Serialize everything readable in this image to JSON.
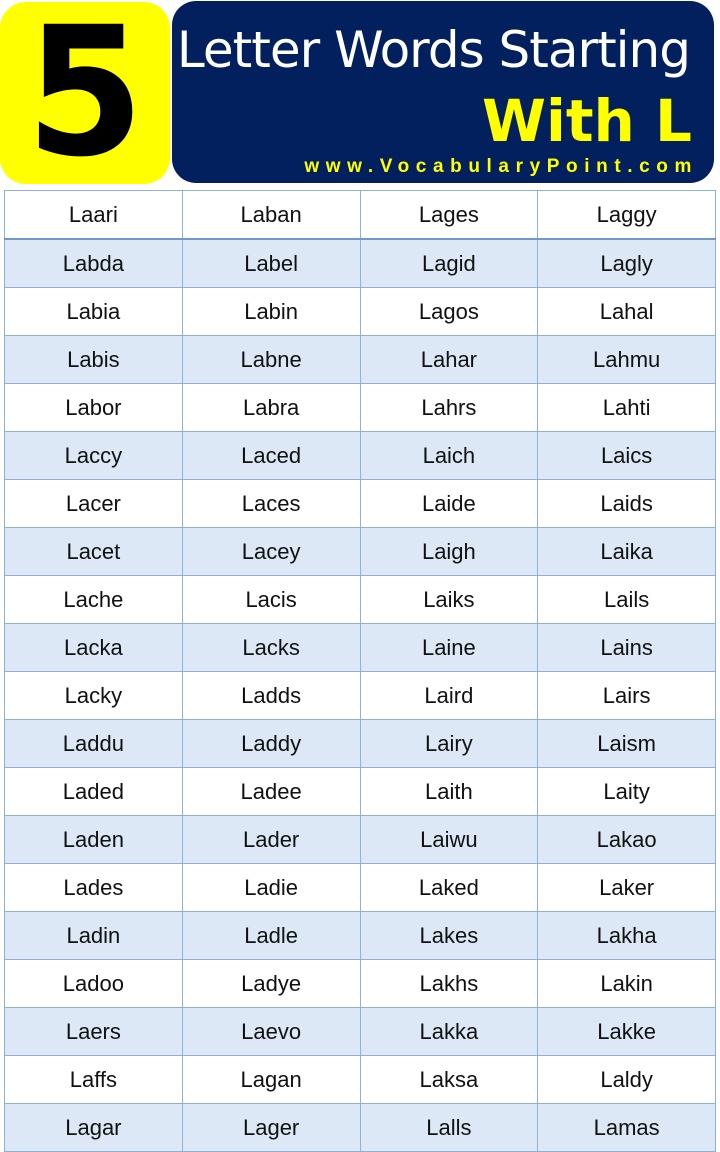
{
  "header": {
    "number": "5",
    "title_line1": "Letter Words Starting",
    "title_line2": "With L",
    "website": "www.VocabularyPoint.com",
    "colors": {
      "yellow": "#ffff00",
      "navy": "#02205e"
    }
  },
  "rows": [
    [
      "Laari",
      "Laban",
      "Lages",
      "Laggy"
    ],
    [
      "Labda",
      "Label",
      "Lagid",
      "Lagly"
    ],
    [
      "Labia",
      "Labin",
      "Lagos",
      "Lahal"
    ],
    [
      "Labis",
      "Labne",
      "Lahar",
      "Lahmu"
    ],
    [
      "Labor",
      "Labra",
      "Lahrs",
      "Lahti"
    ],
    [
      "Laccy",
      "Laced",
      "Laich",
      "Laics"
    ],
    [
      "Lacer",
      "Laces",
      "Laide",
      "Laids"
    ],
    [
      "Lacet",
      "Lacey",
      "Laigh",
      "Laika"
    ],
    [
      "Lache",
      "Lacis",
      "Laiks",
      "Lails"
    ],
    [
      "Lacka",
      "Lacks",
      "Laine",
      "Lains"
    ],
    [
      "Lacky",
      "Ladds",
      "Laird",
      "Lairs"
    ],
    [
      "Laddu",
      "Laddy",
      "Lairy",
      "Laism"
    ],
    [
      "Laded",
      "Ladee",
      "Laith",
      "Laity"
    ],
    [
      "Laden",
      "Lader",
      "Laiwu",
      "Lakao"
    ],
    [
      "Lades",
      "Ladie",
      "Laked",
      "Laker"
    ],
    [
      "Ladin",
      "Ladle",
      "Lakes",
      "Lakha"
    ],
    [
      "Ladoo",
      "Ladye",
      "Lakhs",
      "Lakin"
    ],
    [
      "Laers",
      "Laevo",
      "Lakka",
      "Lakke"
    ],
    [
      "Laffs",
      "Lagan",
      "Laksa",
      "Laldy"
    ],
    [
      "Lagar",
      "Lager",
      "Lalls",
      "Lamas"
    ]
  ]
}
